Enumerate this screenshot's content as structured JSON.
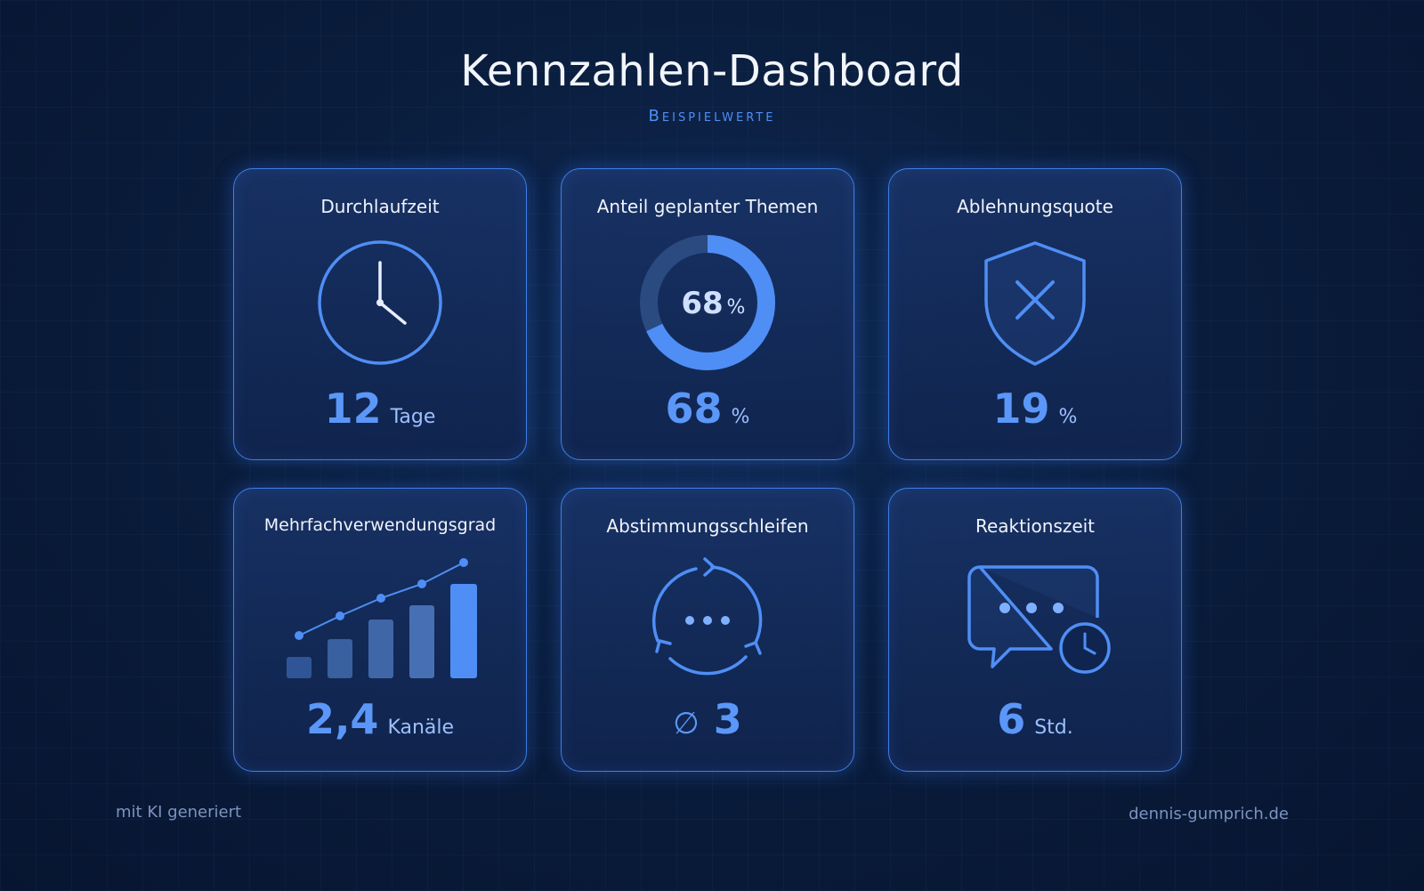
{
  "header": {
    "title": "Kennzahlen-Dashboard",
    "subtitle": "Beispielwerte"
  },
  "cards": [
    {
      "title": "Durchlaufzeit",
      "value": "12",
      "unit": "Tage",
      "icon": "clock-icon"
    },
    {
      "title": "Anteil geplanter Themen",
      "value": "68",
      "unit": "%",
      "donut_value": "68",
      "donut_unit": "%",
      "fraction": 0.68,
      "icon": "donut-chart-icon"
    },
    {
      "title": "Ablehnungsquote",
      "value": "19",
      "unit": "%",
      "icon": "shield-x-icon"
    },
    {
      "title": "Mehrfachverwendungsgrad",
      "value": "2,4",
      "unit": "Kanäle",
      "icon": "bar-chart-icon"
    },
    {
      "title": "Abstimmungsschleifen",
      "value": "3",
      "prefix": "∅",
      "icon": "refresh-loop-icon"
    },
    {
      "title": "Reaktionszeit",
      "value": "6",
      "unit": "Std.",
      "icon": "chat-clock-icon"
    }
  ],
  "footer": {
    "left": "mit KI generiert",
    "right": "dennis-gumprich.de"
  },
  "colors": {
    "accent": "#4f8ef5",
    "value": "#5b97f8",
    "background": "#0a1d3d"
  }
}
